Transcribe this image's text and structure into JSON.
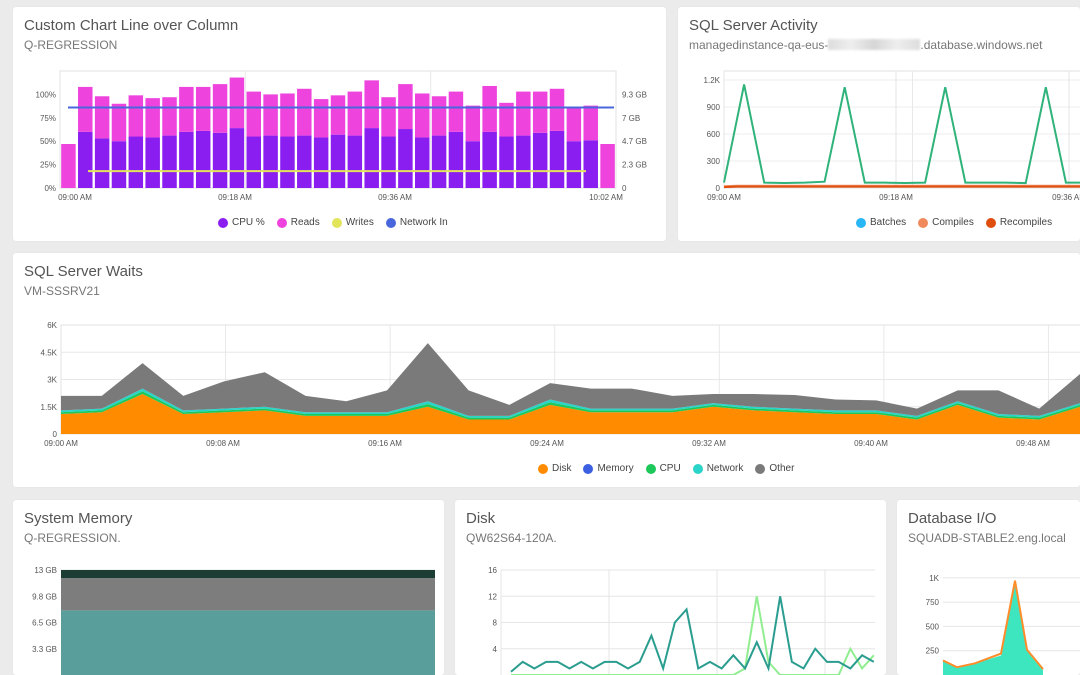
{
  "panels": {
    "p1": {
      "title": "Custom Chart Line over Column",
      "subtitle": "Q-REGRESSION"
    },
    "p2": {
      "title": "SQL Server Activity",
      "subtitle_pre": "managedinstance-qa-eus-",
      "subtitle_post": ".database.windows.net"
    },
    "p3": {
      "title": "SQL Server Waits",
      "subtitle": "VM-SSSRV21"
    },
    "p4": {
      "title": "System Memory",
      "subtitle": "Q-REGRESSION."
    },
    "p5": {
      "title": "Disk",
      "subtitle": "QW62S64-120A."
    },
    "p6": {
      "title": "Database I/O",
      "subtitle": "SQUADB-STABLE2.eng.local"
    }
  },
  "chart_data": [
    {
      "id": "combo",
      "type": "bar",
      "x_ticks": [
        "09:00 AM",
        "09:18 AM",
        "09:36 AM",
        "10:02 AM"
      ],
      "y_left_ticks": [
        "0%",
        "25%",
        "50%",
        "75%",
        "100%"
      ],
      "y_right_ticks": [
        "0",
        "2.3 GB",
        "4.7 GB",
        "7 GB",
        "9.3 GB"
      ],
      "ylim": [
        0,
        125
      ],
      "series": [
        {
          "name": "CPU %",
          "color": "#8a1ef0",
          "values": [
            0,
            60,
            53,
            50,
            55,
            54,
            56,
            60,
            61,
            59,
            64,
            55,
            56,
            55,
            56,
            54,
            57,
            56,
            64,
            55,
            63,
            54,
            56,
            60,
            50,
            60,
            55,
            56,
            59,
            61,
            50,
            51,
            0
          ]
        },
        {
          "name": "Reads",
          "color": "#ee44dd",
          "values": [
            47,
            48,
            45,
            40,
            44,
            42,
            41,
            48,
            47,
            52,
            54,
            48,
            44,
            46,
            50,
            41,
            42,
            47,
            51,
            42,
            48,
            47,
            42,
            43,
            38,
            49,
            36,
            47,
            44,
            45,
            37,
            37,
            47
          ]
        },
        {
          "name": "Writes",
          "color": "#e2e45a",
          "values": [
            18
          ]
        },
        {
          "name": "Network In",
          "color": "#4a66dd",
          "values": [
            86
          ]
        }
      ]
    },
    {
      "id": "activity",
      "type": "line",
      "x_ticks": [
        "09:00 AM",
        "09:18 AM",
        "09:36 AM"
      ],
      "y_ticks": [
        "0",
        "300",
        "600",
        "900",
        "1.2K"
      ],
      "ylim": [
        0,
        1300
      ],
      "series": [
        {
          "name": "Batches",
          "color": "#29b6f6",
          "values": []
        },
        {
          "name": "Compiles",
          "color": "#f08a5d",
          "values": [
            20,
            25,
            25,
            25,
            25,
            25,
            25,
            25,
            25,
            25,
            25,
            25,
            25,
            25,
            25,
            25,
            25,
            25,
            25,
            25,
            25,
            25,
            25,
            25,
            25,
            25,
            25,
            25,
            25
          ]
        },
        {
          "name": "Recompiles",
          "color": "#e04e0e",
          "values": [
            10,
            15,
            15,
            15,
            15,
            15,
            15,
            15,
            15,
            15,
            15,
            15,
            15,
            15,
            15,
            15,
            15,
            15,
            15,
            15,
            15,
            15,
            15,
            15,
            15,
            15,
            15,
            15,
            15
          ]
        },
        {
          "name": "",
          "color": "#2fb37a",
          "values": [
            60,
            1150,
            60,
            55,
            60,
            70,
            1120,
            60,
            60,
            55,
            60,
            1120,
            60,
            60,
            60,
            55,
            1120,
            60,
            60
          ]
        }
      ]
    },
    {
      "id": "waits",
      "type": "area",
      "x_ticks": [
        "09:00 AM",
        "09:08 AM",
        "09:16 AM",
        "09:24 AM",
        "09:32 AM",
        "09:40 AM",
        "09:48 AM"
      ],
      "y_ticks": [
        "0",
        "1.5K",
        "3K",
        "4.5K",
        "6K"
      ],
      "ylim": [
        0,
        6000
      ],
      "series": [
        {
          "name": "Disk",
          "color": "#ff8c00",
          "values": [
            1100,
            1200,
            2200,
            1100,
            1200,
            1300,
            1000,
            1000,
            1000,
            1500,
            800,
            800,
            1600,
            1200,
            1200,
            1200,
            1500,
            1300,
            1200,
            1100,
            1100,
            800,
            1600,
            900,
            800,
            1500
          ]
        },
        {
          "name": "Memory",
          "color": "#3a5fe0",
          "values": []
        },
        {
          "name": "CPU",
          "color": "#1cc85a",
          "values": [
            100,
            100,
            150,
            100,
            100,
            100,
            100,
            100,
            100,
            150,
            100,
            100,
            150,
            100,
            100,
            100,
            100,
            100,
            100,
            100,
            100,
            100,
            100,
            100,
            100,
            100
          ]
        },
        {
          "name": "Network",
          "color": "#2ad4c8",
          "values": [
            100,
            100,
            150,
            100,
            100,
            100,
            100,
            100,
            100,
            150,
            100,
            100,
            150,
            100,
            100,
            100,
            100,
            100,
            100,
            100,
            100,
            100,
            100,
            100,
            100,
            100
          ]
        },
        {
          "name": "Other",
          "color": "#7a7a7a",
          "values": [
            800,
            700,
            1400,
            800,
            1500,
            1900,
            900,
            600,
            1200,
            3200,
            1400,
            600,
            900,
            1100,
            1100,
            700,
            500,
            700,
            750,
            600,
            550,
            400,
            600,
            1300,
            400,
            1600
          ]
        }
      ]
    },
    {
      "id": "memory",
      "type": "area",
      "y_ticks": [
        "3.3 GB",
        "6.5 GB",
        "9.8 GB",
        "13 GB"
      ],
      "ylim": [
        0,
        13
      ],
      "series": [
        {
          "name": "",
          "color": "#5a9e9c",
          "values": [
            8.0,
            8.0
          ]
        },
        {
          "name": "",
          "color": "#7d7d7d",
          "values": [
            4.0,
            4.0
          ]
        },
        {
          "name": "",
          "color": "#1c3d33",
          "values": [
            1.0,
            1.0
          ]
        }
      ]
    },
    {
      "id": "disk",
      "type": "line",
      "y_ticks": [
        "4",
        "8",
        "12",
        "16"
      ],
      "ylim": [
        0,
        16
      ],
      "series": [
        {
          "name": "",
          "color": "#2a9d8f",
          "values": [
            0.5,
            2,
            1,
            2,
            2,
            1,
            2,
            1,
            2,
            2,
            1,
            2,
            6,
            1,
            8,
            10,
            1,
            2,
            1,
            3,
            1,
            5,
            1,
            12,
            2,
            1,
            4,
            2,
            2,
            1,
            3,
            2
          ]
        },
        {
          "name": "",
          "color": "#90ee90",
          "values": [
            0,
            0,
            0,
            0,
            0,
            0,
            0,
            0,
            0,
            0,
            0,
            0,
            0,
            0,
            0,
            0,
            0,
            0,
            0,
            0,
            1,
            12,
            2,
            0,
            0,
            0,
            0,
            0,
            0,
            4,
            1,
            3
          ]
        }
      ]
    },
    {
      "id": "dbio",
      "type": "area",
      "y_ticks": [
        "250",
        "500",
        "750",
        "1K"
      ],
      "ylim": [
        0,
        1080
      ],
      "series": [
        {
          "name": "",
          "color": "#3ee6c0",
          "values": [
            150,
            80,
            120,
            200,
            950,
            250,
            50
          ]
        },
        {
          "name": "",
          "color": "#ff8c2a",
          "values": [
            150,
            80,
            120,
            220,
            970,
            260,
            60
          ]
        }
      ]
    }
  ]
}
